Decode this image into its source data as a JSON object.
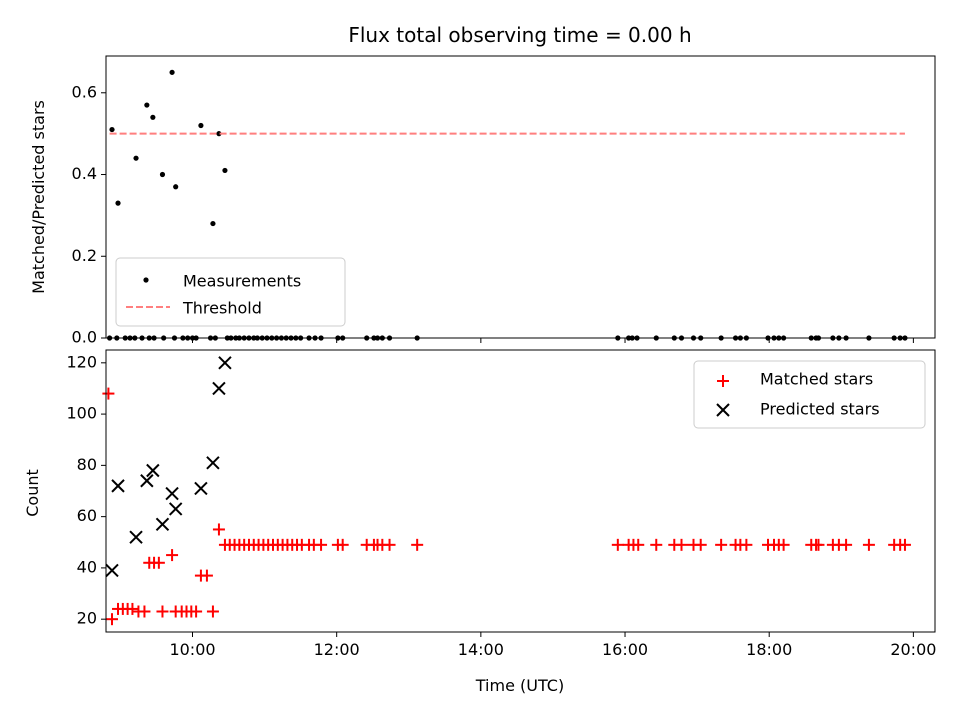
{
  "chart_data": [
    {
      "type": "scatter",
      "title": "Flux total observing time = 0.00 h",
      "xlabel": "",
      "ylabel": "Matched/Predicted stars",
      "ylim": [
        0,
        0.69
      ],
      "yticks": [
        "0.0",
        "0.2",
        "0.4",
        "0.6"
      ],
      "xlim": [
        "08:48",
        "20:18"
      ],
      "xticks": [
        "10:00",
        "12:00",
        "14:00",
        "16:00",
        "18:00",
        "20:00"
      ],
      "show_xtick_labels": false,
      "grid": false,
      "legend_placement": "lower-left",
      "series": [
        {
          "name": "Measurements",
          "kind": "points",
          "color": "#000000",
          "points": [
            [
              "08:53",
              0.51
            ],
            [
              "08:58",
              0.33
            ],
            [
              "09:13",
              0.44
            ],
            [
              "09:22",
              0.57
            ],
            [
              "09:27",
              0.54
            ],
            [
              "09:35",
              0.4
            ],
            [
              "09:43",
              0.65
            ],
            [
              "09:46",
              0.37
            ],
            [
              "10:07",
              0.52
            ],
            [
              "10:17",
              0.28
            ],
            [
              "10:22",
              0.5
            ],
            [
              "10:27",
              0.41
            ],
            [
              "08:51",
              0
            ],
            [
              "08:57",
              0
            ],
            [
              "09:04",
              0
            ],
            [
              "09:08",
              0
            ],
            [
              "09:12",
              0
            ],
            [
              "09:18",
              0
            ],
            [
              "09:24",
              0
            ],
            [
              "09:28",
              0
            ],
            [
              "09:36",
              0
            ],
            [
              "09:45",
              0
            ],
            [
              "09:52",
              0
            ],
            [
              "09:56",
              0
            ],
            [
              "10:00",
              0
            ],
            [
              "10:03",
              0
            ],
            [
              "10:15",
              0
            ],
            [
              "10:19",
              0
            ],
            [
              "10:29",
              0
            ],
            [
              "10:32",
              0
            ],
            [
              "10:36",
              0
            ],
            [
              "10:39",
              0
            ],
            [
              "10:43",
              0
            ],
            [
              "10:47",
              0
            ],
            [
              "10:51",
              0
            ],
            [
              "10:54",
              0
            ],
            [
              "10:58",
              0
            ],
            [
              "11:02",
              0
            ],
            [
              "11:06",
              0
            ],
            [
              "11:10",
              0
            ],
            [
              "11:14",
              0
            ],
            [
              "11:18",
              0
            ],
            [
              "11:22",
              0
            ],
            [
              "11:26",
              0
            ],
            [
              "11:30",
              0
            ],
            [
              "11:37",
              0
            ],
            [
              "11:42",
              0
            ],
            [
              "11:47",
              0
            ],
            [
              "12:01",
              0
            ],
            [
              "12:05",
              0
            ],
            [
              "12:25",
              0
            ],
            [
              "12:31",
              0
            ],
            [
              "12:34",
              0
            ],
            [
              "12:38",
              0
            ],
            [
              "12:44",
              0
            ],
            [
              "13:07",
              0
            ],
            [
              "15:54",
              0
            ],
            [
              "16:03",
              0
            ],
            [
              "16:06",
              0
            ],
            [
              "16:10",
              0
            ],
            [
              "16:26",
              0
            ],
            [
              "16:41",
              0
            ],
            [
              "16:47",
              0
            ],
            [
              "16:57",
              0
            ],
            [
              "17:03",
              0
            ],
            [
              "17:20",
              0
            ],
            [
              "17:32",
              0
            ],
            [
              "17:36",
              0
            ],
            [
              "17:41",
              0
            ],
            [
              "17:59",
              0
            ],
            [
              "18:04",
              0
            ],
            [
              "18:08",
              0
            ],
            [
              "18:12",
              0
            ],
            [
              "18:35",
              0
            ],
            [
              "18:39",
              0
            ],
            [
              "18:41",
              0
            ],
            [
              "18:53",
              0
            ],
            [
              "18:58",
              0
            ],
            [
              "19:04",
              0
            ],
            [
              "19:23",
              0
            ],
            [
              "19:44",
              0
            ],
            [
              "19:49",
              0
            ],
            [
              "19:53",
              0
            ]
          ]
        },
        {
          "name": "Threshold",
          "kind": "line",
          "color": "#ff7f7f",
          "points": [
            [
              "08:51",
              0.5
            ],
            [
              "19:53",
              0.5
            ]
          ]
        }
      ]
    },
    {
      "type": "scatter",
      "title": "",
      "xlabel": "Time (UTC)",
      "ylabel": "Count",
      "ylim": [
        15,
        125
      ],
      "yticks": [
        "20",
        "40",
        "60",
        "80",
        "100",
        "120"
      ],
      "xlim": [
        "08:48",
        "20:18"
      ],
      "xticks": [
        "10:00",
        "12:00",
        "14:00",
        "16:00",
        "18:00",
        "20:00"
      ],
      "show_xtick_labels": true,
      "grid": false,
      "legend_placement": "top-right",
      "series": [
        {
          "name": "Matched stars",
          "kind": "plus",
          "color": "#ff0000",
          "points": [
            [
              "08:50",
              108
            ],
            [
              "08:53",
              20
            ],
            [
              "08:58",
              24
            ],
            [
              "09:02",
              24
            ],
            [
              "09:06",
              24
            ],
            [
              "09:10",
              24
            ],
            [
              "09:15",
              23
            ],
            [
              "09:20",
              23
            ],
            [
              "09:24",
              42
            ],
            [
              "09:28",
              42
            ],
            [
              "09:32",
              42
            ],
            [
              "09:35",
              23
            ],
            [
              "09:43",
              45
            ],
            [
              "09:46",
              23
            ],
            [
              "09:51",
              23
            ],
            [
              "09:55",
              23
            ],
            [
              "09:59",
              23
            ],
            [
              "10:03",
              23
            ],
            [
              "10:07",
              37
            ],
            [
              "10:12",
              37
            ],
            [
              "10:17",
              23
            ],
            [
              "10:22",
              55
            ],
            [
              "10:27",
              49
            ],
            [
              "10:31",
              49
            ],
            [
              "10:35",
              49
            ],
            [
              "10:39",
              49
            ],
            [
              "10:43",
              49
            ],
            [
              "10:47",
              49
            ],
            [
              "10:51",
              49
            ],
            [
              "10:55",
              49
            ],
            [
              "10:59",
              49
            ],
            [
              "11:03",
              49
            ],
            [
              "11:07",
              49
            ],
            [
              "11:11",
              49
            ],
            [
              "11:15",
              49
            ],
            [
              "11:19",
              49
            ],
            [
              "11:23",
              49
            ],
            [
              "11:27",
              49
            ],
            [
              "11:31",
              49
            ],
            [
              "11:37",
              49
            ],
            [
              "11:41",
              49
            ],
            [
              "11:47",
              49
            ],
            [
              "12:01",
              49
            ],
            [
              "12:05",
              49
            ],
            [
              "12:25",
              49
            ],
            [
              "12:31",
              49
            ],
            [
              "12:34",
              49
            ],
            [
              "12:38",
              49
            ],
            [
              "12:44",
              49
            ],
            [
              "13:07",
              49
            ],
            [
              "15:54",
              49
            ],
            [
              "16:03",
              49
            ],
            [
              "16:07",
              49
            ],
            [
              "16:11",
              49
            ],
            [
              "16:26",
              49
            ],
            [
              "16:41",
              49
            ],
            [
              "16:47",
              49
            ],
            [
              "16:57",
              49
            ],
            [
              "17:03",
              49
            ],
            [
              "17:20",
              49
            ],
            [
              "17:32",
              49
            ],
            [
              "17:36",
              49
            ],
            [
              "17:41",
              49
            ],
            [
              "17:59",
              49
            ],
            [
              "18:04",
              49
            ],
            [
              "18:08",
              49
            ],
            [
              "18:12",
              49
            ],
            [
              "18:35",
              49
            ],
            [
              "18:39",
              49
            ],
            [
              "18:41",
              49
            ],
            [
              "18:53",
              49
            ],
            [
              "18:58",
              49
            ],
            [
              "19:04",
              49
            ],
            [
              "19:23",
              49
            ],
            [
              "19:44",
              49
            ],
            [
              "19:49",
              49
            ],
            [
              "19:53",
              49
            ]
          ]
        },
        {
          "name": "Predicted stars",
          "kind": "cross",
          "color": "#000000",
          "points": [
            [
              "08:53",
              39
            ],
            [
              "08:58",
              72
            ],
            [
              "09:13",
              52
            ],
            [
              "09:22",
              74
            ],
            [
              "09:27",
              78
            ],
            [
              "09:35",
              57
            ],
            [
              "09:43",
              69
            ],
            [
              "09:46",
              63
            ],
            [
              "10:07",
              71
            ],
            [
              "10:17",
              81
            ],
            [
              "10:22",
              110
            ],
            [
              "10:27",
              120
            ]
          ]
        }
      ]
    }
  ]
}
